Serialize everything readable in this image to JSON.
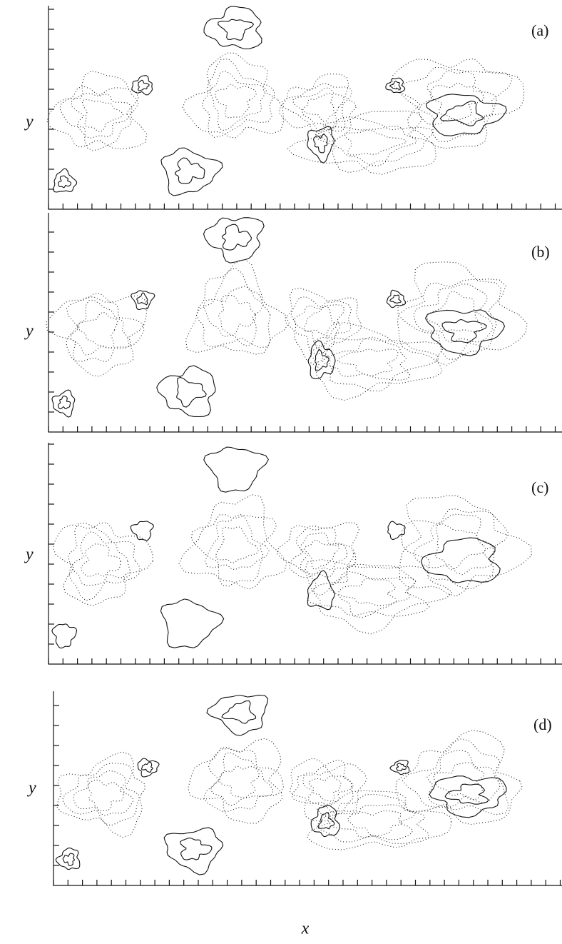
{
  "panels": [
    {
      "label": "(a)",
      "y_axis": "y"
    },
    {
      "label": "(b)",
      "y_axis": "y"
    },
    {
      "label": "(c)",
      "y_axis": "y"
    },
    {
      "label": "(d)",
      "y_axis": "y"
    }
  ],
  "x_axis": "x"
}
